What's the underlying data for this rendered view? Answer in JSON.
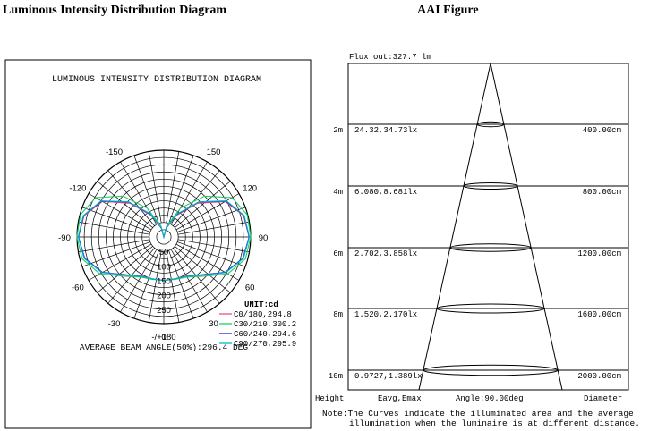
{
  "headers": {
    "left": "Luminous Intensity Distribution Diagram",
    "right": "AAI Figure"
  },
  "chart_data": [
    {
      "type": "polar",
      "title": "LUMINOUS INTENSITY DISTRIBUTION DIAGRAM",
      "unit_label": "UNIT:cd",
      "radial_ticks": [
        50,
        100,
        150,
        200,
        250
      ],
      "radial_max": 300,
      "angle_labels": [
        "-/+180",
        "-150",
        "150",
        "-120",
        "120",
        "-90",
        "90",
        "-60",
        "60",
        "-30",
        "30",
        "0"
      ],
      "grid": true,
      "legend_position": "bottom-right",
      "series": [
        {
          "name": "C0/180,294.8",
          "color": "#e8508a",
          "angles": [
            0,
            15,
            30,
            45,
            60,
            75,
            90,
            105,
            120,
            135,
            150,
            165,
            180
          ],
          "values": [
            150,
            150,
            155,
            185,
            245,
            285,
            294.8,
            285,
            245,
            165,
            85,
            30,
            0
          ]
        },
        {
          "name": "C30/210,300.2",
          "color": "#22cc66",
          "angles": [
            0,
            15,
            30,
            45,
            60,
            75,
            90,
            105,
            120,
            135,
            150,
            165,
            180
          ],
          "values": [
            150,
            152,
            160,
            192,
            255,
            292,
            300.2,
            298,
            272,
            200,
            115,
            40,
            0
          ]
        },
        {
          "name": "C60/240,294.6",
          "color": "#2222ee",
          "angles": [
            0,
            15,
            30,
            45,
            60,
            75,
            90,
            105,
            120,
            135,
            150,
            165,
            180
          ],
          "values": [
            150,
            150,
            157,
            185,
            245,
            283,
            294.6,
            287,
            248,
            170,
            90,
            33,
            0
          ]
        },
        {
          "name": "C90/270,295.9",
          "color": "#00b8c8",
          "angles": [
            0,
            15,
            30,
            45,
            60,
            75,
            90,
            105,
            120,
            135,
            150,
            165,
            180
          ],
          "values": [
            150,
            150,
            158,
            187,
            247,
            285,
            295.9,
            288,
            250,
            172,
            92,
            34,
            0
          ]
        }
      ],
      "footer": "AVERAGE BEAM ANGLE(50%):296.4 DEG"
    },
    {
      "type": "table",
      "flux": "Flux out:327.7 lm",
      "rows": [
        {
          "height": "2m",
          "lux": "24.32,34.73lx",
          "diameter": "400.00cm"
        },
        {
          "height": "4m",
          "lux": "6.080,8.681lx",
          "diameter": "800.00cm"
        },
        {
          "height": "6m",
          "lux": "2.702,3.858lx",
          "diameter": "1200.00cm"
        },
        {
          "height": "8m",
          "lux": "1.520,2.170lx",
          "diameter": "1600.00cm"
        },
        {
          "height": "10m",
          "lux": "0.9727,1.389lx",
          "diameter": "2000.00cm"
        }
      ],
      "col_height": "Height",
      "col_eavg": "Eavg,Emax",
      "col_angle": "Angle:90.00deg",
      "col_diameter": "Diameter",
      "note_line1": "Note:The Curves indicate the illuminated area and the average",
      "note_line2": "illumination when the luminaire is at different distance."
    }
  ]
}
